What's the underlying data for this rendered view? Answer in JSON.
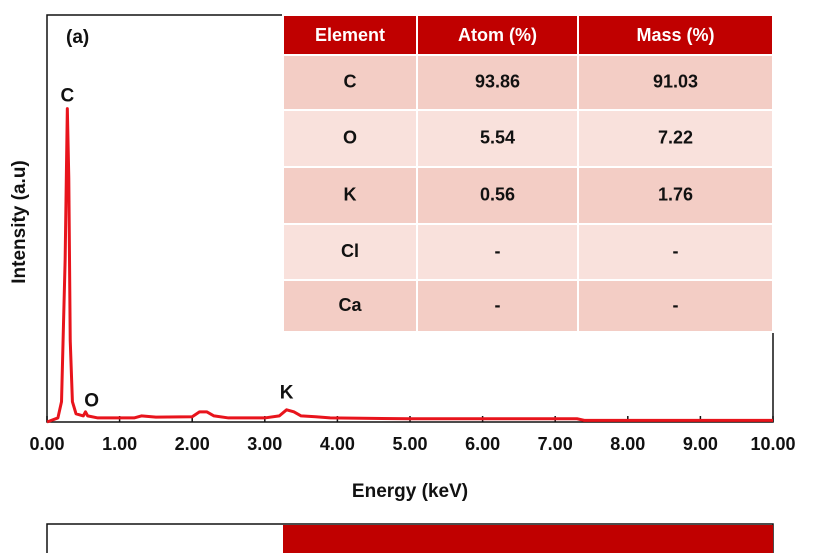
{
  "panel_label": "(a)",
  "chart_data": {
    "type": "line",
    "x_label": "Energy (keV)",
    "y_label": "Intensity (a.u)",
    "x": [
      0.0,
      0.15,
      0.2,
      0.25,
      0.28,
      0.3,
      0.32,
      0.35,
      0.4,
      0.5,
      0.53,
      0.56,
      0.7,
      1.0,
      1.2,
      1.3,
      1.5,
      2.0,
      2.1,
      2.2,
      2.3,
      2.5,
      3.0,
      3.2,
      3.3,
      3.4,
      3.5,
      3.7,
      3.9,
      5.0,
      7.3,
      7.4,
      10.0
    ],
    "series": [
      {
        "color": "#e8141c",
        "values": [
          0,
          1,
          5,
          40,
          77,
          60,
          20,
          5,
          2,
          1.5,
          2.5,
          1.5,
          1,
          1,
          1,
          1.5,
          1.2,
          1.3,
          2.5,
          2.5,
          1.5,
          1,
          1,
          1.5,
          3,
          2.5,
          1.5,
          1.3,
          1,
          0.8,
          0.8,
          0.4,
          0.4
        ]
      }
    ],
    "xlim": [
      0,
      10
    ],
    "ylim": [
      0,
      100
    ],
    "xticks": [
      {
        "value": 0,
        "label": "0.00"
      },
      {
        "value": 1,
        "label": "1.00"
      },
      {
        "value": 2,
        "label": "2.00"
      },
      {
        "value": 3,
        "label": "3.00"
      },
      {
        "value": 4,
        "label": "4.00"
      },
      {
        "value": 5,
        "label": "5.00"
      },
      {
        "value": 6,
        "label": "6.00"
      },
      {
        "value": 7,
        "label": "7.00"
      },
      {
        "value": 8,
        "label": "8.00"
      },
      {
        "value": 9,
        "label": "9.00"
      },
      {
        "value": 10,
        "label": "10.00"
      }
    ],
    "annotations": [
      {
        "text": "C",
        "x": 0.28,
        "y": 80
      },
      {
        "text": "O",
        "x": 0.56,
        "y": 5
      },
      {
        "text": "K",
        "x": 3.3,
        "y": 7
      }
    ]
  },
  "table": {
    "header": [
      "Element",
      "Atom (%)",
      "Mass (%)"
    ],
    "rows": [
      [
        "C",
        93.86,
        91.03
      ],
      [
        "O",
        5.54,
        7.22
      ],
      [
        "K",
        0.56,
        1.76
      ],
      [
        "Cl",
        "-",
        "-"
      ],
      [
        "Ca",
        "-",
        "-"
      ]
    ]
  }
}
